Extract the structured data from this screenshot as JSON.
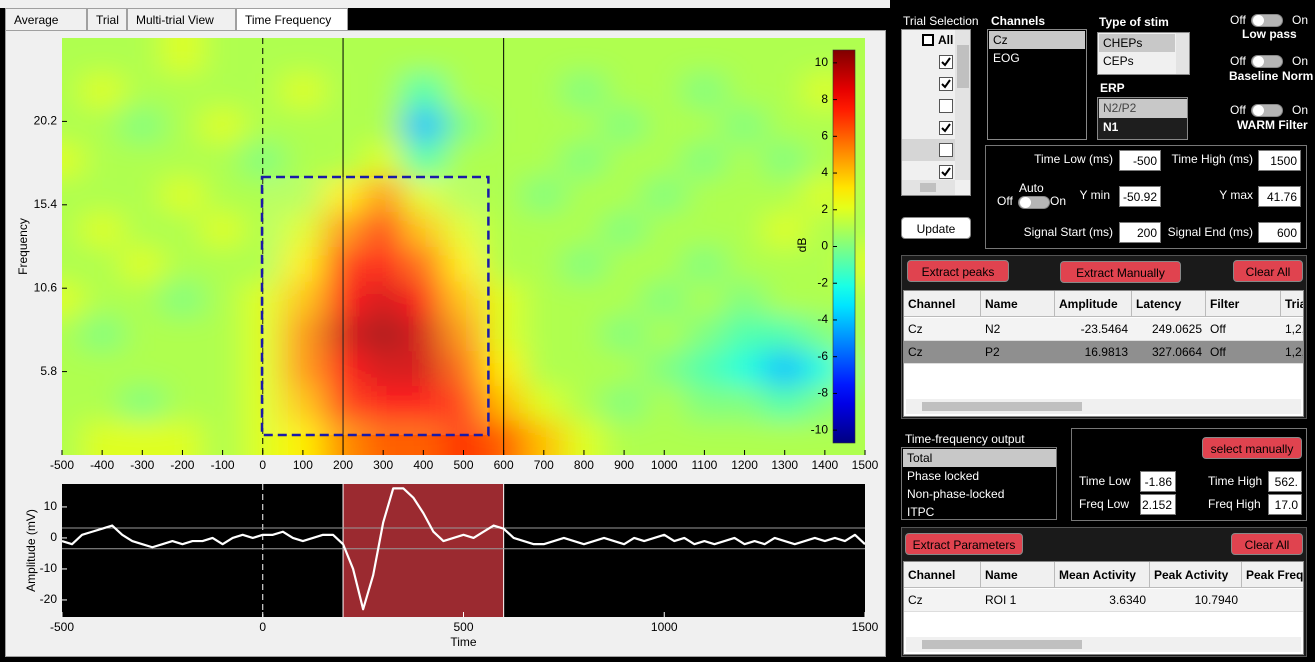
{
  "tabs": [
    "Average",
    "Trial",
    "Multi-trial View",
    "Time Frequency"
  ],
  "chart_data": [
    {
      "type": "heatmap",
      "ylabel": "Frequency",
      "colormap": "jet",
      "colorbar_label": "dB",
      "x": [
        -500,
        -400,
        -300,
        -200,
        -100,
        0,
        100,
        200,
        300,
        400,
        500,
        600,
        700,
        800,
        900,
        1000,
        1100,
        1200,
        1300,
        1400,
        1500
      ],
      "y": [
        2,
        4,
        6,
        8,
        10,
        12,
        14,
        16,
        18,
        20,
        22,
        24
      ],
      "z": [
        [
          1,
          2,
          2,
          2,
          1,
          2,
          3,
          5,
          6,
          6,
          7,
          6,
          4,
          2,
          1,
          1,
          1,
          1,
          1,
          1,
          1
        ],
        [
          1,
          1,
          0,
          1,
          1,
          2,
          4,
          7,
          8,
          8,
          7,
          4,
          2,
          1,
          0,
          1,
          0,
          0,
          -1,
          0,
          1
        ],
        [
          1,
          1,
          1,
          1,
          1,
          2,
          5,
          8,
          9,
          9,
          6,
          3,
          1,
          1,
          1,
          0,
          -1,
          -2,
          -4,
          -2,
          1
        ],
        [
          1,
          0,
          1,
          1,
          1,
          2,
          5,
          9,
          10,
          9,
          5,
          2,
          1,
          1,
          0,
          1,
          0,
          -1,
          -1,
          0,
          1
        ],
        [
          2,
          1,
          1,
          0,
          1,
          2,
          4,
          8,
          9,
          8,
          4,
          2,
          1,
          1,
          1,
          0,
          1,
          0,
          1,
          1,
          1
        ],
        [
          1,
          1,
          2,
          1,
          1,
          1,
          3,
          7,
          8,
          6,
          3,
          1,
          1,
          0,
          1,
          1,
          0,
          1,
          1,
          1,
          2
        ],
        [
          1,
          2,
          1,
          1,
          2,
          1,
          2,
          5,
          7,
          4,
          2,
          1,
          1,
          1,
          0,
          1,
          1,
          1,
          2,
          1,
          1
        ],
        [
          1,
          1,
          1,
          2,
          1,
          1,
          1,
          3,
          5,
          2,
          1,
          1,
          0,
          1,
          1,
          0,
          1,
          1,
          1,
          2,
          1
        ],
        [
          2,
          1,
          1,
          1,
          1,
          0,
          1,
          1,
          2,
          -1,
          1,
          1,
          1,
          0,
          1,
          1,
          0,
          1,
          0,
          1,
          1
        ],
        [
          1,
          1,
          0,
          1,
          2,
          1,
          1,
          1,
          1,
          -4,
          0,
          1,
          1,
          1,
          0,
          1,
          1,
          0,
          1,
          1,
          1
        ],
        [
          1,
          2,
          1,
          1,
          1,
          1,
          2,
          1,
          1,
          -1,
          1,
          1,
          1,
          0,
          1,
          1,
          0,
          1,
          1,
          2,
          1
        ],
        [
          1,
          1,
          1,
          2,
          1,
          1,
          1,
          1,
          1,
          1,
          1,
          1,
          1,
          1,
          1,
          1,
          1,
          1,
          1,
          1,
          1
        ]
      ],
      "xlim": [
        -500,
        1500
      ],
      "ylim": [
        1,
        25
      ],
      "xticks": [
        -500,
        -400,
        -300,
        -200,
        -100,
        0,
        100,
        200,
        300,
        400,
        500,
        600,
        700,
        800,
        900,
        1000,
        1100,
        1200,
        1300,
        1400,
        1500
      ],
      "yticks": [
        5.8,
        10.6,
        15.4,
        20.2
      ],
      "clim": [
        -10.7,
        10.7
      ],
      "cticks": [
        -10,
        -8,
        -6,
        -4,
        -2,
        0,
        2,
        4,
        6,
        8,
        10
      ]
    },
    {
      "type": "line",
      "xlabel": "Time",
      "ylabel": "Amplitude (mV)",
      "background": "#000000",
      "highlight_color": "#9b2a30",
      "x": [
        -500,
        -475,
        -450,
        -425,
        -400,
        -375,
        -350,
        -325,
        -300,
        -275,
        -250,
        -225,
        -200,
        -175,
        -150,
        -125,
        -100,
        -75,
        -50,
        -25,
        0,
        25,
        50,
        75,
        100,
        125,
        150,
        175,
        200,
        225,
        250,
        275,
        300,
        325,
        350,
        375,
        400,
        425,
        450,
        475,
        500,
        525,
        550,
        575,
        600,
        625,
        650,
        675,
        700,
        725,
        750,
        775,
        800,
        825,
        850,
        875,
        900,
        925,
        950,
        975,
        1000,
        1025,
        1050,
        1075,
        1100,
        1125,
        1150,
        1175,
        1200,
        1225,
        1250,
        1275,
        1300,
        1325,
        1350,
        1375,
        1400,
        1425,
        1450,
        1475,
        1500
      ],
      "series": [
        {
          "color": "#ffffff",
          "values": [
            -1,
            -2,
            1,
            2,
            3,
            4,
            1,
            -1,
            -2,
            -3,
            -2,
            -1,
            -2,
            -1,
            -1,
            0,
            -2,
            0,
            1,
            0,
            1,
            1,
            2,
            0,
            -1,
            0,
            1,
            1,
            -2,
            -10,
            -23,
            -12,
            5,
            16,
            16,
            13,
            8,
            2,
            -1,
            0,
            1,
            0,
            2,
            4,
            3,
            0,
            -1,
            -2,
            -2,
            -1,
            0,
            -1,
            -2,
            -1,
            0,
            -1,
            -2,
            0,
            -1,
            0,
            1,
            -1,
            0,
            -2,
            -1,
            -2,
            -1,
            0,
            -2,
            -1,
            -2,
            0,
            -1,
            -2,
            -1,
            0,
            -1,
            0,
            -1,
            1,
            -2
          ]
        }
      ],
      "xlim": [
        -500,
        1500
      ],
      "ylim": [
        -25.5,
        17.4
      ],
      "xticks": [
        -500,
        0,
        500,
        1000,
        1500
      ],
      "yticks": [
        -20,
        -10,
        0,
        10
      ],
      "hlines": [
        3.2,
        -3.5
      ]
    }
  ],
  "controls": {
    "trial_selection": {
      "title": "Trial Selection",
      "all_label": "All",
      "checked": [
        true,
        true,
        false,
        true,
        false,
        true
      ],
      "highlighted": 4
    },
    "channels": {
      "title": "Channels",
      "items": [
        "Cz",
        "EOG"
      ],
      "selected": 0
    },
    "stim": {
      "title": "Type of stim",
      "items": [
        "CHEPs",
        "CEPs"
      ],
      "selected": 0
    },
    "erp": {
      "title": "ERP",
      "items": [
        "N2/P2",
        "N1"
      ],
      "selected": 0
    },
    "toggles": [
      {
        "off": "Off",
        "on": "On",
        "label": "Low pass"
      },
      {
        "off": "Off",
        "on": "On",
        "label": "Baseline",
        "label2": "Norm"
      },
      {
        "off": "Off",
        "on": "On",
        "label": "WARM Filter"
      }
    ],
    "params": {
      "time_low_label": "Time Low (ms)",
      "time_low": -500,
      "time_high_label": "Time High (ms)",
      "time_high": 1500,
      "auto_label": "Auto",
      "auto_off": "Off",
      "auto_on": "On",
      "ymin_label": "Y min",
      "ymin": -50.92,
      "ymax_label": "Y max",
      "ymax": 41.76,
      "signal_start_label": "Signal Start (ms)",
      "signal_start": 200,
      "signal_end_label": "Signal End (ms)",
      "signal_end": 600
    },
    "update": "Update",
    "peaks": {
      "buttons": [
        "Extract peaks",
        "Extract Manually",
        "Clear All"
      ],
      "columns": [
        "Channel",
        "Name",
        "Amplitude",
        "Latency",
        "Filter",
        "Tria"
      ],
      "rows": [
        [
          "Cz",
          "N2",
          "-23.5464",
          "249.0625",
          "Off",
          "1,2,"
        ],
        [
          "Cz",
          "P2",
          "16.9813",
          "327.0664",
          "Off",
          "1,2,"
        ]
      ],
      "selected": 1
    },
    "tf_output": {
      "title": "Time-frequency output",
      "items": [
        "Total",
        "Phase locked",
        "Non-phase-locked",
        "ITPC"
      ],
      "selected": 0
    },
    "roi": {
      "button": "select manually",
      "time_low_label": "Time Low",
      "time_low": "-1.86",
      "time_high_label": "Time High",
      "time_high": "562.",
      "freq_low_label": "Freq Low",
      "freq_low": "2.152",
      "freq_high_label": "Freq High",
      "freq_high": "17.0"
    },
    "params_table": {
      "buttons": [
        "Extract Parameters",
        "Clear All"
      ],
      "columns": [
        "Channel",
        "Name",
        "Mean Activity",
        "Peak Activity",
        "Peak Frequ"
      ],
      "rows": [
        [
          "Cz",
          "ROI 1",
          "3.6340",
          "10.7940"
        ]
      ]
    }
  }
}
